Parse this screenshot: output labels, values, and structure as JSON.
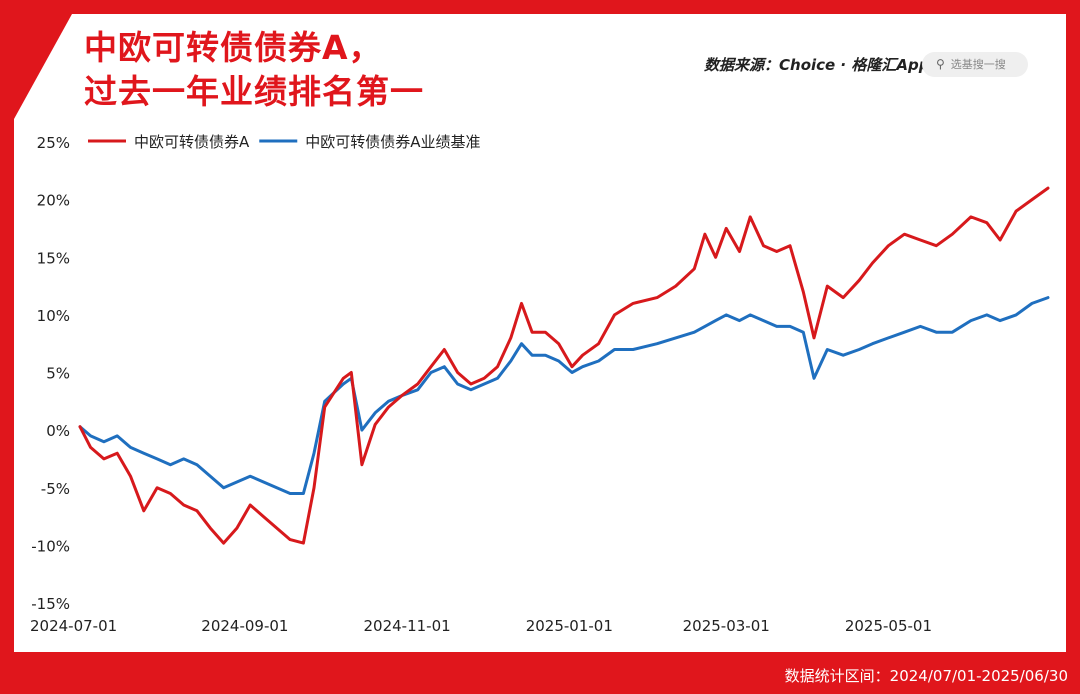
{
  "title_lines": [
    "中欧可转债债券A，",
    "过去一年业绩排名第一"
  ],
  "source_label": "数据来源：Choice · 格隆汇App",
  "search": {
    "placeholder": "选基搜一搜",
    "icon": "search-icon"
  },
  "footer_text": "数据统计区间：2024/07/01-2025/06/30",
  "colors": {
    "accent": "#e0161c",
    "series_a": "#d7191c",
    "series_b": "#1f6fbf"
  },
  "chart_data": {
    "type": "line",
    "title": "",
    "xlabel": "",
    "ylabel": "",
    "x_ticks": [
      "2024-07-01",
      "2024-09-01",
      "2024-11-01",
      "2025-01-01",
      "2025-03-01",
      "2025-05-01"
    ],
    "y_ticks": [
      "25%",
      "20%",
      "15%",
      "10%",
      "5%",
      "0%",
      "-5%",
      "-10%",
      "-15%"
    ],
    "ylim": [
      -15,
      25
    ],
    "grid": false,
    "legend_position": "top-left",
    "series": [
      {
        "name": "中欧可转债债券A",
        "color": "#d7191c",
        "points": [
          [
            "2024-07-01",
            0.3
          ],
          [
            "2024-07-05",
            -1.5
          ],
          [
            "2024-07-10",
            -2.5
          ],
          [
            "2024-07-15",
            -2.0
          ],
          [
            "2024-07-20",
            -4.0
          ],
          [
            "2024-07-25",
            -7.0
          ],
          [
            "2024-07-30",
            -5.0
          ],
          [
            "2024-08-04",
            -5.5
          ],
          [
            "2024-08-09",
            -6.5
          ],
          [
            "2024-08-14",
            -7.0
          ],
          [
            "2024-08-19",
            -8.5
          ],
          [
            "2024-08-24",
            -9.8
          ],
          [
            "2024-08-29",
            -8.5
          ],
          [
            "2024-09-03",
            -6.5
          ],
          [
            "2024-09-08",
            -7.5
          ],
          [
            "2024-09-13",
            -8.5
          ],
          [
            "2024-09-18",
            -9.5
          ],
          [
            "2024-09-23",
            -9.8
          ],
          [
            "2024-09-27",
            -5.0
          ],
          [
            "2024-10-01",
            2.0
          ],
          [
            "2024-10-08",
            4.5
          ],
          [
            "2024-10-11",
            5.0
          ],
          [
            "2024-10-15",
            -3.0
          ],
          [
            "2024-10-20",
            0.5
          ],
          [
            "2024-10-25",
            2.0
          ],
          [
            "2024-10-30",
            3.0
          ],
          [
            "2024-11-05",
            4.0
          ],
          [
            "2024-11-10",
            5.5
          ],
          [
            "2024-11-15",
            7.0
          ],
          [
            "2024-11-20",
            5.0
          ],
          [
            "2024-11-25",
            4.0
          ],
          [
            "2024-11-30",
            4.5
          ],
          [
            "2024-12-05",
            5.5
          ],
          [
            "2024-12-10",
            8.0
          ],
          [
            "2024-12-14",
            11.0
          ],
          [
            "2024-12-18",
            8.5
          ],
          [
            "2024-12-23",
            8.5
          ],
          [
            "2024-12-28",
            7.5
          ],
          [
            "2025-01-02",
            5.5
          ],
          [
            "2025-01-06",
            6.5
          ],
          [
            "2025-01-12",
            7.5
          ],
          [
            "2025-01-18",
            10.0
          ],
          [
            "2025-01-25",
            11.0
          ],
          [
            "2025-02-03",
            11.5
          ],
          [
            "2025-02-10",
            12.5
          ],
          [
            "2025-02-17",
            14.0
          ],
          [
            "2025-02-21",
            17.0
          ],
          [
            "2025-02-25",
            15.0
          ],
          [
            "2025-03-01",
            17.5
          ],
          [
            "2025-03-06",
            15.5
          ],
          [
            "2025-03-10",
            18.5
          ],
          [
            "2025-03-15",
            16.0
          ],
          [
            "2025-03-20",
            15.5
          ],
          [
            "2025-03-25",
            16.0
          ],
          [
            "2025-03-30",
            12.0
          ],
          [
            "2025-04-03",
            8.0
          ],
          [
            "2025-04-08",
            12.5
          ],
          [
            "2025-04-14",
            11.5
          ],
          [
            "2025-04-20",
            13.0
          ],
          [
            "2025-04-25",
            14.5
          ],
          [
            "2025-05-01",
            16.0
          ],
          [
            "2025-05-07",
            17.0
          ],
          [
            "2025-05-13",
            16.5
          ],
          [
            "2025-05-19",
            16.0
          ],
          [
            "2025-05-25",
            17.0
          ],
          [
            "2025-06-01",
            18.5
          ],
          [
            "2025-06-07",
            18.0
          ],
          [
            "2025-06-12",
            16.5
          ],
          [
            "2025-06-18",
            19.0
          ],
          [
            "2025-06-24",
            20.0
          ],
          [
            "2025-06-30",
            21.0
          ]
        ]
      },
      {
        "name": "中欧可转债债券A业绩基准",
        "color": "#1f6fbf",
        "points": [
          [
            "2024-07-01",
            0.3
          ],
          [
            "2024-07-05",
            -0.5
          ],
          [
            "2024-07-10",
            -1.0
          ],
          [
            "2024-07-15",
            -0.5
          ],
          [
            "2024-07-20",
            -1.5
          ],
          [
            "2024-07-25",
            -2.0
          ],
          [
            "2024-07-30",
            -2.5
          ],
          [
            "2024-08-04",
            -3.0
          ],
          [
            "2024-08-09",
            -2.5
          ],
          [
            "2024-08-14",
            -3.0
          ],
          [
            "2024-08-19",
            -4.0
          ],
          [
            "2024-08-24",
            -5.0
          ],
          [
            "2024-08-29",
            -4.5
          ],
          [
            "2024-09-03",
            -4.0
          ],
          [
            "2024-09-08",
            -4.5
          ],
          [
            "2024-09-13",
            -5.0
          ],
          [
            "2024-09-18",
            -5.5
          ],
          [
            "2024-09-23",
            -5.5
          ],
          [
            "2024-09-27",
            -2.0
          ],
          [
            "2024-10-01",
            2.5
          ],
          [
            "2024-10-08",
            4.0
          ],
          [
            "2024-10-11",
            4.5
          ],
          [
            "2024-10-15",
            0.0
          ],
          [
            "2024-10-20",
            1.5
          ],
          [
            "2024-10-25",
            2.5
          ],
          [
            "2024-10-30",
            3.0
          ],
          [
            "2024-11-05",
            3.5
          ],
          [
            "2024-11-10",
            5.0
          ],
          [
            "2024-11-15",
            5.5
          ],
          [
            "2024-11-20",
            4.0
          ],
          [
            "2024-11-25",
            3.5
          ],
          [
            "2024-11-30",
            4.0
          ],
          [
            "2024-12-05",
            4.5
          ],
          [
            "2024-12-10",
            6.0
          ],
          [
            "2024-12-14",
            7.5
          ],
          [
            "2024-12-18",
            6.5
          ],
          [
            "2024-12-23",
            6.5
          ],
          [
            "2024-12-28",
            6.0
          ],
          [
            "2025-01-02",
            5.0
          ],
          [
            "2025-01-06",
            5.5
          ],
          [
            "2025-01-12",
            6.0
          ],
          [
            "2025-01-18",
            7.0
          ],
          [
            "2025-01-25",
            7.0
          ],
          [
            "2025-02-03",
            7.5
          ],
          [
            "2025-02-10",
            8.0
          ],
          [
            "2025-02-17",
            8.5
          ],
          [
            "2025-02-21",
            9.0
          ],
          [
            "2025-02-25",
            9.5
          ],
          [
            "2025-03-01",
            10.0
          ],
          [
            "2025-03-06",
            9.5
          ],
          [
            "2025-03-10",
            10.0
          ],
          [
            "2025-03-15",
            9.5
          ],
          [
            "2025-03-20",
            9.0
          ],
          [
            "2025-03-25",
            9.0
          ],
          [
            "2025-03-30",
            8.5
          ],
          [
            "2025-04-03",
            4.5
          ],
          [
            "2025-04-08",
            7.0
          ],
          [
            "2025-04-14",
            6.5
          ],
          [
            "2025-04-20",
            7.0
          ],
          [
            "2025-04-25",
            7.5
          ],
          [
            "2025-05-01",
            8.0
          ],
          [
            "2025-05-07",
            8.5
          ],
          [
            "2025-05-13",
            9.0
          ],
          [
            "2025-05-19",
            8.5
          ],
          [
            "2025-05-25",
            8.5
          ],
          [
            "2025-06-01",
            9.5
          ],
          [
            "2025-06-07",
            10.0
          ],
          [
            "2025-06-12",
            9.5
          ],
          [
            "2025-06-18",
            10.0
          ],
          [
            "2025-06-24",
            11.0
          ],
          [
            "2025-06-30",
            11.5
          ]
        ]
      }
    ]
  }
}
